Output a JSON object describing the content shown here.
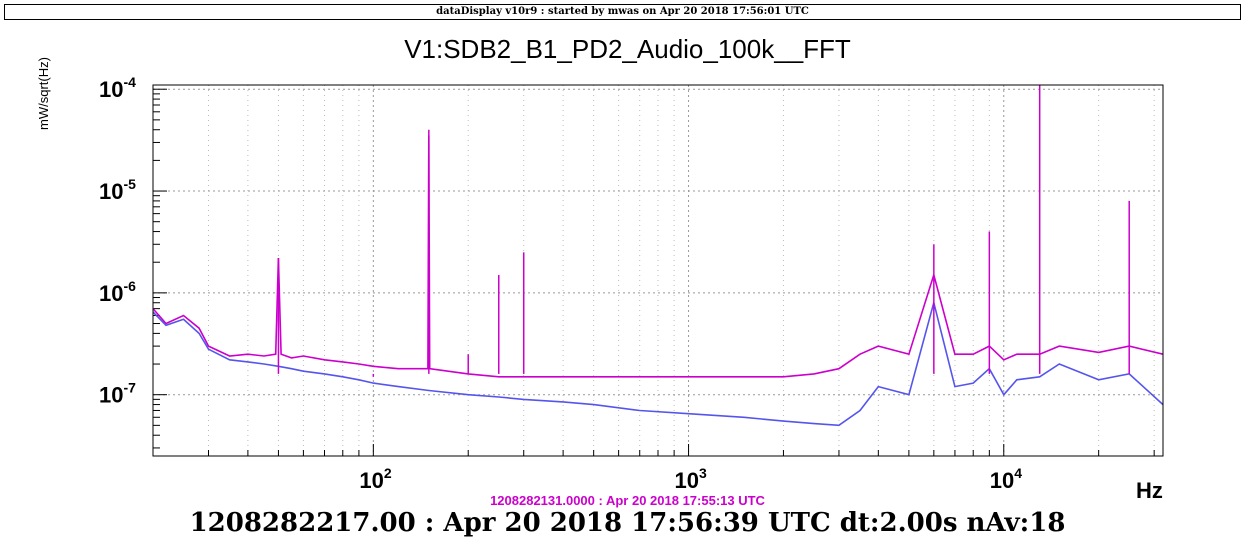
{
  "window": {
    "banner": "dataDisplay v10r9 : started by mwas on Apr 20 2018 17:56:01 UTC"
  },
  "chart_data": {
    "type": "line",
    "title": "V1:SDB2_B1_PD2_Audio_100k__FFT",
    "ylabel": "mW/sqrt(Hz)",
    "xlabel": "Hz",
    "xscale": "log",
    "yscale": "log",
    "xlim": [
      20,
      32000
    ],
    "ylim": [
      2.5e-08,
      0.00011
    ],
    "x_ticks": [
      {
        "value": 100,
        "base": "10",
        "exp": "2"
      },
      {
        "value": 1000,
        "base": "10",
        "exp": "3"
      },
      {
        "value": 10000,
        "base": "10",
        "exp": "4"
      }
    ],
    "y_ticks": [
      {
        "value": 1e-07,
        "base": "10",
        "exp": "-7"
      },
      {
        "value": 1e-06,
        "base": "10",
        "exp": "-6"
      },
      {
        "value": 1e-05,
        "base": "10",
        "exp": "-5"
      },
      {
        "value": 0.0001,
        "base": "10",
        "exp": "-4"
      }
    ],
    "grid": true,
    "series": [
      {
        "color": "#cc00cc",
        "x": [
          20,
          22,
          25,
          28,
          30,
          35,
          40,
          45,
          49,
          50,
          51,
          55,
          60,
          70,
          80,
          90,
          100,
          120,
          149,
          150,
          151,
          200,
          250,
          300,
          400,
          500,
          700,
          1000,
          1500,
          2000,
          2500,
          3000,
          3500,
          4000,
          5000,
          6000,
          7000,
          8000,
          9000,
          10000,
          11000,
          13000,
          15000,
          20000,
          25000,
          32000
        ],
        "y": [
          7e-07,
          5e-07,
          6e-07,
          4.5e-07,
          3e-07,
          2.4e-07,
          2.5e-07,
          2.4e-07,
          2.5e-07,
          2.2e-06,
          2.5e-07,
          2.3e-07,
          2.4e-07,
          2.2e-07,
          2.1e-07,
          2e-07,
          1.9e-07,
          1.8e-07,
          1.8e-07,
          3.5e-05,
          1.8e-07,
          1.6e-07,
          1.5e-07,
          1.5e-07,
          1.5e-07,
          1.5e-07,
          1.5e-07,
          1.5e-07,
          1.5e-07,
          1.5e-07,
          1.6e-07,
          1.8e-07,
          2.5e-07,
          3e-07,
          2.5e-07,
          1.5e-06,
          2.5e-07,
          2.5e-07,
          3e-07,
          2.2e-07,
          2.5e-07,
          2.5e-07,
          3e-07,
          2.6e-07,
          3e-07,
          2.5e-07
        ]
      },
      {
        "color": "#5555ee",
        "x": [
          20,
          22,
          25,
          28,
          30,
          35,
          40,
          45,
          50,
          55,
          60,
          70,
          80,
          90,
          100,
          120,
          150,
          200,
          250,
          300,
          400,
          500,
          700,
          1000,
          1500,
          2000,
          2500,
          3000,
          3500,
          4000,
          5000,
          6000,
          7000,
          8000,
          9000,
          10000,
          11000,
          13000,
          15000,
          20000,
          25000,
          32000
        ],
        "y": [
          6.5e-07,
          4.8e-07,
          5.5e-07,
          4e-07,
          2.8e-07,
          2.2e-07,
          2.1e-07,
          2e-07,
          1.9e-07,
          1.8e-07,
          1.7e-07,
          1.6e-07,
          1.5e-07,
          1.4e-07,
          1.3e-07,
          1.2e-07,
          1.1e-07,
          1e-07,
          9.5e-08,
          9e-08,
          8.5e-08,
          8e-08,
          7e-08,
          6.5e-08,
          6e-08,
          5.5e-08,
          5.2e-08,
          5e-08,
          7e-08,
          1.2e-07,
          1e-07,
          8e-07,
          1.2e-07,
          1.3e-07,
          1.8e-07,
          1e-07,
          1.4e-07,
          1.5e-07,
          2e-07,
          1.4e-07,
          1.6e-07,
          8e-08
        ]
      }
    ],
    "peaks": [
      {
        "x": 150,
        "y": 4e-05,
        "color": "#cc00cc"
      },
      {
        "x": 50,
        "y": 2.2e-06,
        "color": "#cc00cc"
      },
      {
        "x": 100,
        "y": 1.5e-07,
        "color": "#cc00cc"
      },
      {
        "x": 200,
        "y": 2.5e-07,
        "color": "#cc00cc"
      },
      {
        "x": 250,
        "y": 1.5e-06,
        "color": "#cc00cc"
      },
      {
        "x": 300,
        "y": 2.5e-06,
        "color": "#cc00cc"
      },
      {
        "x": 13000,
        "y": 0.00011,
        "color": "#cc00cc"
      },
      {
        "x": 9000,
        "y": 4e-06,
        "color": "#cc00cc"
      },
      {
        "x": 6000,
        "y": 3e-06,
        "color": "#cc00cc"
      },
      {
        "x": 25000,
        "y": 8e-06,
        "color": "#cc00cc"
      }
    ]
  },
  "annotations": {
    "reference_time": "1208282131.0000 : Apr 20 2018 17:55:13 UTC",
    "footer": "1208282217.00 : Apr 20 2018 17:56:39 UTC dt:2.00s nAv:18"
  }
}
